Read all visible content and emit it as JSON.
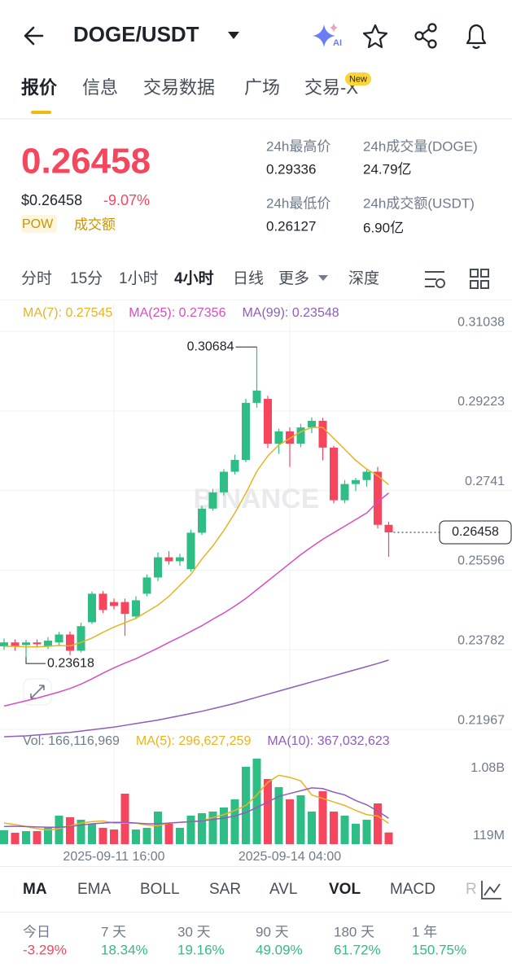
{
  "header": {
    "pair": "DOGE/USDT",
    "ai_badge": "AI"
  },
  "tabs": [
    "报价",
    "信息",
    "交易数据",
    "广场",
    "交易-X"
  ],
  "tab_badge": "New",
  "ticker": {
    "price": "0.26458",
    "usd_price": "$0.26458",
    "change": "-9.07%",
    "tags": [
      "POW",
      "成交额"
    ],
    "stats": [
      {
        "label": "24h最高价",
        "value": "0.29336"
      },
      {
        "label": "24h成交量(DOGE)",
        "value": "24.79亿"
      },
      {
        "label": "24h最低价",
        "value": "0.26127"
      },
      {
        "label": "24h成交额(USDT)",
        "value": "6.90亿"
      }
    ]
  },
  "intervals": [
    "分时",
    "15分",
    "1小时",
    "4小时",
    "日线",
    "更多",
    "深度"
  ],
  "chart_data": [
    {
      "type": "candlestick",
      "watermark": "BINANCE",
      "up_color": "#2ebd85",
      "down_color": "#f6465d",
      "grid": true,
      "ylim": [
        0.2195,
        0.3169
      ],
      "yticks": [
        0.31038,
        0.29223,
        0.2741,
        0.25596,
        0.23782,
        0.21967
      ],
      "candles": [
        [
          0.2386,
          0.2404,
          0.2378,
          0.2395
        ],
        [
          0.2395,
          0.2402,
          0.2376,
          0.2386
        ],
        [
          0.2389,
          0.2401,
          0.23618,
          0.2395
        ],
        [
          0.2395,
          0.2402,
          0.2383,
          0.2391
        ],
        [
          0.2386,
          0.2407,
          0.238,
          0.2399
        ],
        [
          0.2395,
          0.2419,
          0.2388,
          0.2413
        ],
        [
          0.2413,
          0.242,
          0.2366,
          0.2376
        ],
        [
          0.2376,
          0.244,
          0.2372,
          0.2432
        ],
        [
          0.2441,
          0.2511,
          0.2437,
          0.2506
        ],
        [
          0.2506,
          0.2512,
          0.2462,
          0.2469
        ],
        [
          0.2487,
          0.2495,
          0.247,
          0.2478
        ],
        [
          0.2487,
          0.2495,
          0.241,
          0.246
        ],
        [
          0.2454,
          0.25,
          0.2448,
          0.2491
        ],
        [
          0.2506,
          0.255,
          0.25,
          0.2543
        ],
        [
          0.2543,
          0.26,
          0.2535,
          0.2589
        ],
        [
          0.2589,
          0.2603,
          0.2572,
          0.258
        ],
        [
          0.258,
          0.2597,
          0.257,
          0.2589
        ],
        [
          0.2562,
          0.2652,
          0.2556,
          0.2645
        ],
        [
          0.2645,
          0.2706,
          0.264,
          0.27
        ],
        [
          0.27,
          0.2745,
          0.2695,
          0.2737
        ],
        [
          0.2737,
          0.279,
          0.273,
          0.2784
        ],
        [
          0.2784,
          0.2823,
          0.2778,
          0.2811
        ],
        [
          0.2811,
          0.295,
          0.2806,
          0.2941
        ],
        [
          0.2941,
          0.30684,
          0.293,
          0.2969
        ],
        [
          0.295,
          0.2957,
          0.2838,
          0.2848
        ],
        [
          0.2848,
          0.2882,
          0.2825,
          0.2876
        ],
        [
          0.2876,
          0.2885,
          0.2795,
          0.2848
        ],
        [
          0.2848,
          0.2893,
          0.284,
          0.2885
        ],
        [
          0.2885,
          0.2908,
          0.2872,
          0.29
        ],
        [
          0.29,
          0.2907,
          0.281,
          0.2839
        ],
        [
          0.2839,
          0.2843,
          0.2712,
          0.2719
        ],
        [
          0.2719,
          0.2765,
          0.2712,
          0.2756
        ],
        [
          0.2756,
          0.277,
          0.274,
          0.2765
        ],
        [
          0.2765,
          0.279,
          0.275,
          0.2784
        ],
        [
          0.2784,
          0.2795,
          0.2655,
          0.2663
        ],
        [
          0.2663,
          0.267,
          0.259,
          0.26458
        ]
      ],
      "series": [
        {
          "name": "MA(7): 0.27545",
          "color": "#e6b422",
          "values": [
            0.2386,
            0.2386,
            0.2385,
            0.2385,
            0.2386,
            0.2388,
            0.2387,
            0.2395,
            0.2405,
            0.2418,
            0.243,
            0.244,
            0.245,
            0.2465,
            0.248,
            0.25,
            0.2525,
            0.255,
            0.2585,
            0.2615,
            0.265,
            0.269,
            0.2735,
            0.2785,
            0.282,
            0.2845,
            0.286,
            0.2875,
            0.2885,
            0.2885,
            0.286,
            0.2835,
            0.281,
            0.279,
            0.2775,
            0.27545
          ]
        },
        {
          "name": "MA(25): 0.27356",
          "color": "#d64fbf",
          "values": [
            0.225,
            0.2256,
            0.2262,
            0.2268,
            0.2275,
            0.2282,
            0.229,
            0.23,
            0.2312,
            0.2325,
            0.2337,
            0.2348,
            0.2358,
            0.237,
            0.2382,
            0.2395,
            0.2407,
            0.242,
            0.2433,
            0.2448,
            0.2462,
            0.2478,
            0.2495,
            0.2515,
            0.2535,
            0.2555,
            0.2575,
            0.2595,
            0.2613,
            0.263,
            0.2645,
            0.266,
            0.2675,
            0.269,
            0.2715,
            0.27356
          ]
        },
        {
          "name": "MA(99): 0.23548",
          "color": "#8e5dbd",
          "values": [
            0.218,
            0.2181,
            0.2182,
            0.2184,
            0.2186,
            0.2188,
            0.219,
            0.2193,
            0.2196,
            0.2199,
            0.2202,
            0.2206,
            0.221,
            0.2214,
            0.2218,
            0.2223,
            0.2228,
            0.2233,
            0.2238,
            0.2244,
            0.225,
            0.2256,
            0.2263,
            0.227,
            0.2277,
            0.2284,
            0.2291,
            0.2298,
            0.2305,
            0.2312,
            0.2319,
            0.2326,
            0.2333,
            0.234,
            0.2347,
            0.23548
          ]
        }
      ]
    },
    {
      "type": "bar",
      "categories": [
        null,
        null,
        null,
        null,
        null,
        null,
        null,
        null,
        null,
        null,
        "2025-09-11 16:00",
        null,
        null,
        null,
        null,
        null,
        null,
        null,
        null,
        null,
        null,
        null,
        null,
        null,
        null,
        null,
        "2025-09-14 04:00",
        null,
        null,
        null,
        null,
        null,
        null,
        null,
        null,
        null
      ],
      "ylim": [
        0,
        1239
      ],
      "yticks": [
        {
          "value": 1080,
          "label": "1.08B"
        },
        {
          "value": 119,
          "label": "119M"
        }
      ],
      "series": [
        {
          "name": "Vol: 166,116,969",
          "color": "#707a8a",
          "values": [
            197,
            162,
            185,
            185,
            232,
            405,
            382,
            347,
            290,
            232,
            208,
            718,
            208,
            232,
            463,
            290,
            232,
            405,
            440,
            463,
            521,
            637,
            1100,
            1216,
            926,
            811,
            637,
            695,
            463,
            753,
            463,
            405,
            290,
            347,
            579,
            166.117
          ]
        },
        {
          "name": "MA(5): 296,627,259",
          "color": "#e6b422",
          "values": [
            300,
            280,
            250,
            220,
            200,
            220,
            260,
            300,
            320,
            330,
            300,
            300,
            300,
            270,
            260,
            300,
            310,
            320,
            330,
            380,
            420,
            480,
            550,
            700,
            880,
            980,
            950,
            900,
            700,
            650,
            600,
            550,
            480,
            420,
            400,
            296.627
          ]
        },
        {
          "name": "MA(10): 367,032,623",
          "color": "#8e5dbd",
          "values": [
            250,
            255,
            250,
            245,
            240,
            240,
            250,
            270,
            290,
            300,
            310,
            310,
            300,
            290,
            290,
            300,
            310,
            320,
            330,
            350,
            370,
            400,
            450,
            520,
            600,
            680,
            720,
            760,
            800,
            790,
            740,
            700,
            620,
            560,
            470,
            367.033
          ]
        }
      ]
    }
  ],
  "indicators": [
    "MA",
    "EMA",
    "BOLL",
    "SAR",
    "AVL",
    "VOL",
    "MACD",
    "R"
  ],
  "performance": [
    {
      "label": "今日",
      "value": "-3.29%"
    },
    {
      "label": "7 天",
      "value": "18.34%"
    },
    {
      "label": "30 天",
      "value": "19.16%"
    },
    {
      "label": "90 天",
      "value": "49.09%"
    },
    {
      "label": "180 天",
      "value": "61.72%"
    },
    {
      "label": "1 年",
      "value": "150.75%"
    }
  ]
}
